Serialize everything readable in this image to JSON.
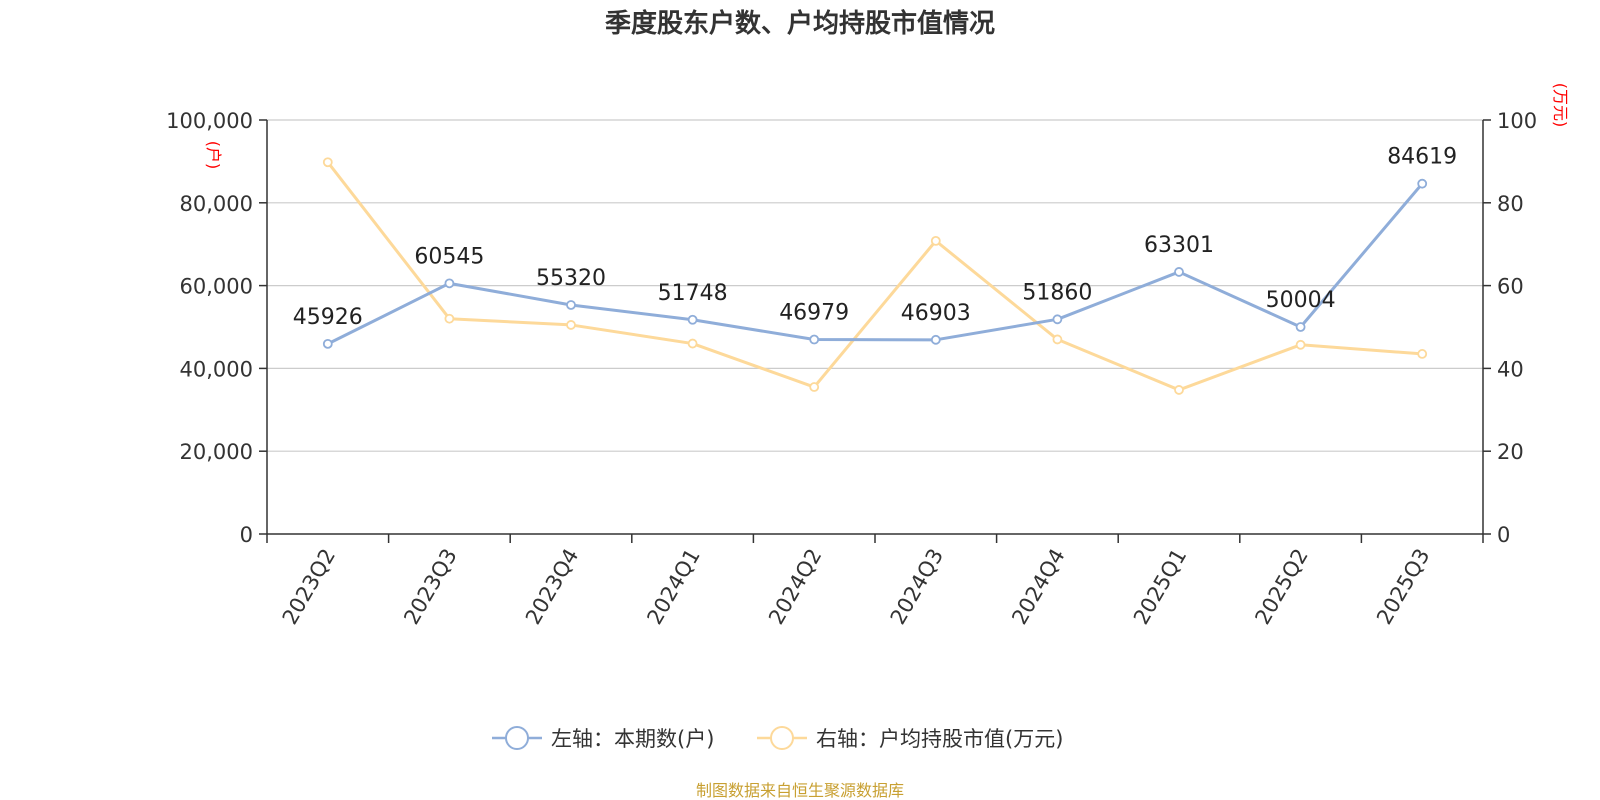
{
  "title": "季度股东户数、户均持股市值情况",
  "source": "制图数据来自恒生聚源数据库",
  "colors": {
    "left_series": "#8fadd9",
    "right_series": "#fdd99a",
    "unit_label": "#ff0000",
    "source_text": "#c8a032"
  },
  "chart_data": {
    "type": "line",
    "categories": [
      "2023Q2",
      "2023Q3",
      "2023Q4",
      "2024Q1",
      "2024Q2",
      "2024Q3",
      "2024Q4",
      "2025Q1",
      "2025Q2",
      "2025Q3"
    ],
    "y_left": {
      "label": "(户)",
      "range": [
        0,
        100000
      ],
      "ticks": [
        "0",
        "20,000",
        "40,000",
        "60,000",
        "80,000",
        "100,000"
      ],
      "tick_values": [
        0,
        20000,
        40000,
        60000,
        80000,
        100000
      ]
    },
    "y_right": {
      "label": "(万元)",
      "range": [
        0,
        100
      ],
      "ticks": [
        "0",
        "20",
        "40",
        "60",
        "80",
        "100"
      ],
      "tick_values": [
        0,
        20,
        40,
        60,
        80,
        100
      ]
    },
    "grid": true,
    "legend_position": "bottom-center",
    "series": [
      {
        "name": "左轴：本期数(户)",
        "axis": "left",
        "values": [
          45926,
          60545,
          55320,
          51748,
          46979,
          46903,
          51860,
          63301,
          50004,
          84619
        ],
        "labels": [
          "45926",
          "60545",
          "55320",
          "51748",
          "46979",
          "46903",
          "51860",
          "63301",
          "50004",
          "84619"
        ]
      },
      {
        "name": "右轴：户均持股市值(万元)",
        "axis": "right",
        "values": [
          89.8,
          52.0,
          50.5,
          46.0,
          35.5,
          70.8,
          47.0,
          34.8,
          45.7,
          43.5
        ]
      }
    ]
  }
}
